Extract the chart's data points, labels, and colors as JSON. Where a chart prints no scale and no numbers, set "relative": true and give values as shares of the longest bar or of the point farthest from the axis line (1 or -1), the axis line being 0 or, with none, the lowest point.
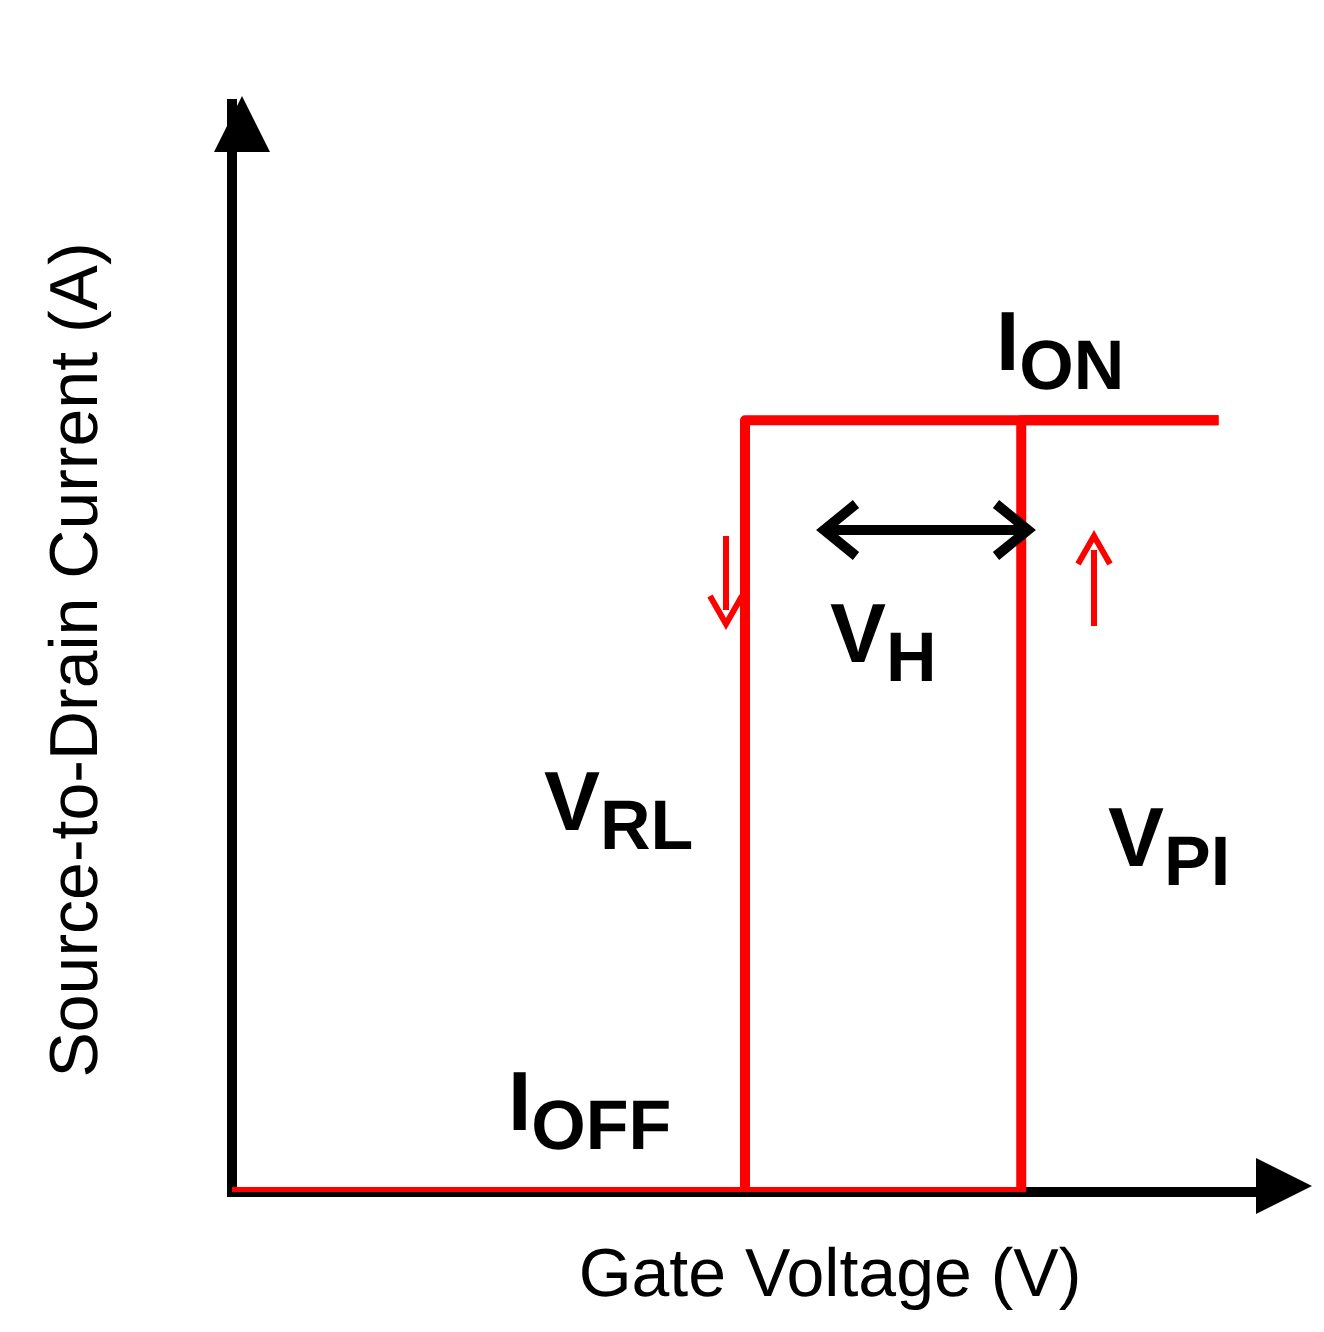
{
  "chart_data": {
    "type": "step",
    "xlabel": "Gate Voltage (V)",
    "ylabel": "Source-to-Drain Current (A)",
    "relative": true,
    "categories": [
      null,
      null,
      null,
      null,
      null,
      null,
      null,
      null,
      null,
      null,
      null,
      null,
      null,
      null,
      null,
      null,
      null,
      null,
      null,
      null,
      null,
      null,
      null,
      null,
      null,
      null,
      null
    ],
    "series": [
      {
        "color": "#ff0000",
        "values": [
          0,
          0,
          0,
          0,
          0,
          0,
          0,
          0,
          0,
          0,
          0,
          0,
          0,
          0,
          0,
          0,
          0,
          0,
          0,
          0,
          0,
          1,
          1,
          1,
          1,
          1,
          null
        ]
      },
      {
        "color": "#ff0000",
        "values": [
          0,
          0,
          0,
          0,
          0,
          0,
          0,
          0,
          0,
          0,
          0,
          0,
          0,
          0,
          1,
          1,
          1,
          1,
          1,
          1,
          1,
          1,
          1,
          1,
          1,
          1,
          null
        ]
      }
    ],
    "annotations": [
      "I$_{ON}$",
      "V$_{H}$",
      "V$_{RL}$",
      "V$_{PI}$",
      "I$_{OFF}$"
    ]
  }
}
